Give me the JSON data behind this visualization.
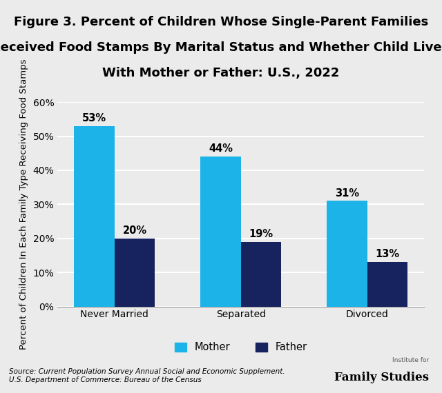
{
  "title_line1": "Figure 3. Percent of Children Whose Single-Parent Families",
  "title_line2": "Received Food Stamps By Marital Status and Whether Child Lived",
  "title_line3": "With Mother or Father: U.S., 2022",
  "categories": [
    "Never Married",
    "Separated",
    "Divorced"
  ],
  "mother_values": [
    53,
    44,
    31
  ],
  "father_values": [
    20,
    19,
    13
  ],
  "mother_color": "#1BB3E8",
  "father_color": "#17235E",
  "ylabel": "Percent of Children In Each Family Type Receiving Food Stamps",
  "ylim": [
    0,
    60
  ],
  "yticks": [
    0,
    10,
    20,
    30,
    40,
    50,
    60
  ],
  "bar_width": 0.32,
  "background_color": "#EBEBEB",
  "plot_bg_color": "#EBEBEB",
  "grid_color": "#FFFFFF",
  "source_text": "Source: Current Population Survey Annual Social and Economic Supplement.\nU.S. Department of Commerce: Bureau of the Census",
  "legend_labels": [
    "Mother",
    "Father"
  ],
  "title_fontsize": 13,
  "label_fontsize": 9.5,
  "tick_fontsize": 10,
  "annotation_fontsize": 10.5
}
